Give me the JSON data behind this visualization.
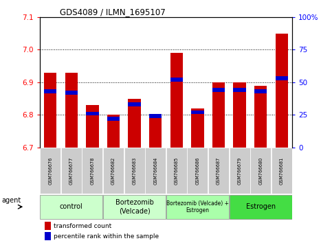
{
  "title": "GDS4089 / ILMN_1695107",
  "samples": [
    "GSM766676",
    "GSM766677",
    "GSM766678",
    "GSM766682",
    "GSM766683",
    "GSM766684",
    "GSM766685",
    "GSM766686",
    "GSM766687",
    "GSM766679",
    "GSM766680",
    "GSM766681"
  ],
  "transformed_counts": [
    6.93,
    6.93,
    6.83,
    6.8,
    6.85,
    6.8,
    6.99,
    6.82,
    6.9,
    6.9,
    6.89,
    7.05
  ],
  "percentile_ranks": [
    43,
    42,
    26,
    22,
    33,
    24,
    52,
    27,
    44,
    44,
    43,
    53
  ],
  "ylim_left": [
    6.7,
    7.1
  ],
  "ylim_right": [
    0,
    100
  ],
  "yticks_left": [
    6.7,
    6.8,
    6.9,
    7.0,
    7.1
  ],
  "yticks_right": [
    0,
    25,
    50,
    75,
    100
  ],
  "ytick_labels_right": [
    "0",
    "25",
    "50",
    "75",
    "100%"
  ],
  "bar_color": "#CC0000",
  "blue_color": "#0000CC",
  "bar_width": 0.6,
  "agent_groups": [
    {
      "label": "control",
      "start": 0,
      "end": 3,
      "color": "#CCFFCC"
    },
    {
      "label": "Bortezomib\n(Velcade)",
      "start": 3,
      "end": 6,
      "color": "#CCFFCC"
    },
    {
      "label": "Bortezomib (Velcade) +\nEstrogen",
      "start": 6,
      "end": 9,
      "color": "#AAFFAA"
    },
    {
      "label": "Estrogen",
      "start": 9,
      "end": 12,
      "color": "#44DD44"
    }
  ],
  "legend_labels": [
    "transformed count",
    "percentile rank within the sample"
  ],
  "xlabel_agent": "agent",
  "tick_bg_color": "#CCCCCC"
}
